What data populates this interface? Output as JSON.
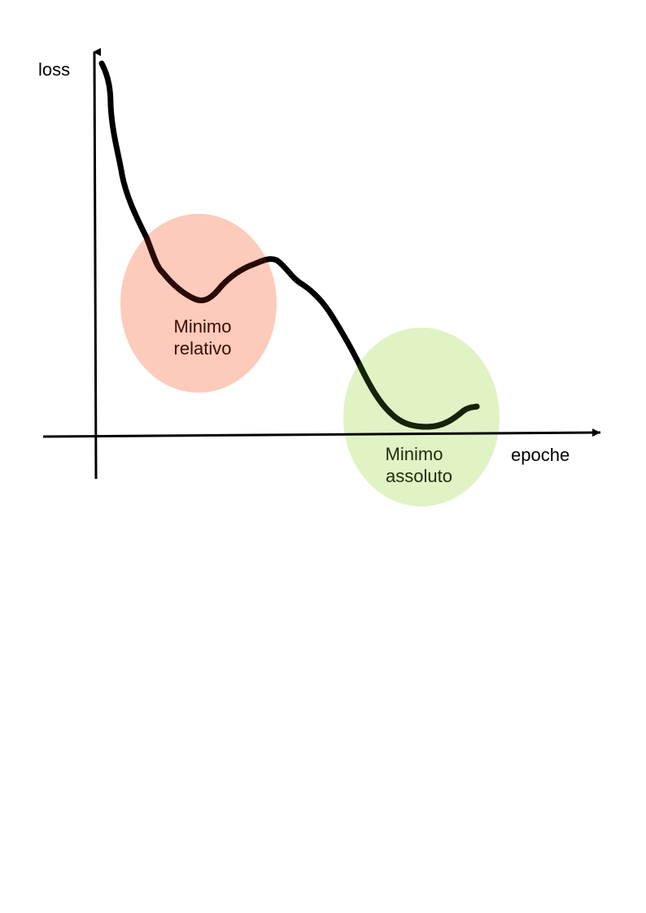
{
  "axes": {
    "y_label": "loss",
    "x_label": "epoche"
  },
  "regions": {
    "relative_minimum": {
      "line1": "Minimo",
      "line2": "relativo",
      "fill_color": "#fccbbb",
      "text_color": "#3a0d04"
    },
    "absolute_minimum": {
      "line1": "Minimo",
      "line2": "assoluto",
      "fill_color": "#dff3c5",
      "text_color": "#1f2d0e"
    }
  },
  "curve": {
    "color": "#000000",
    "color_in_relative": "#2a0904",
    "color_in_absolute": "#142407"
  }
}
